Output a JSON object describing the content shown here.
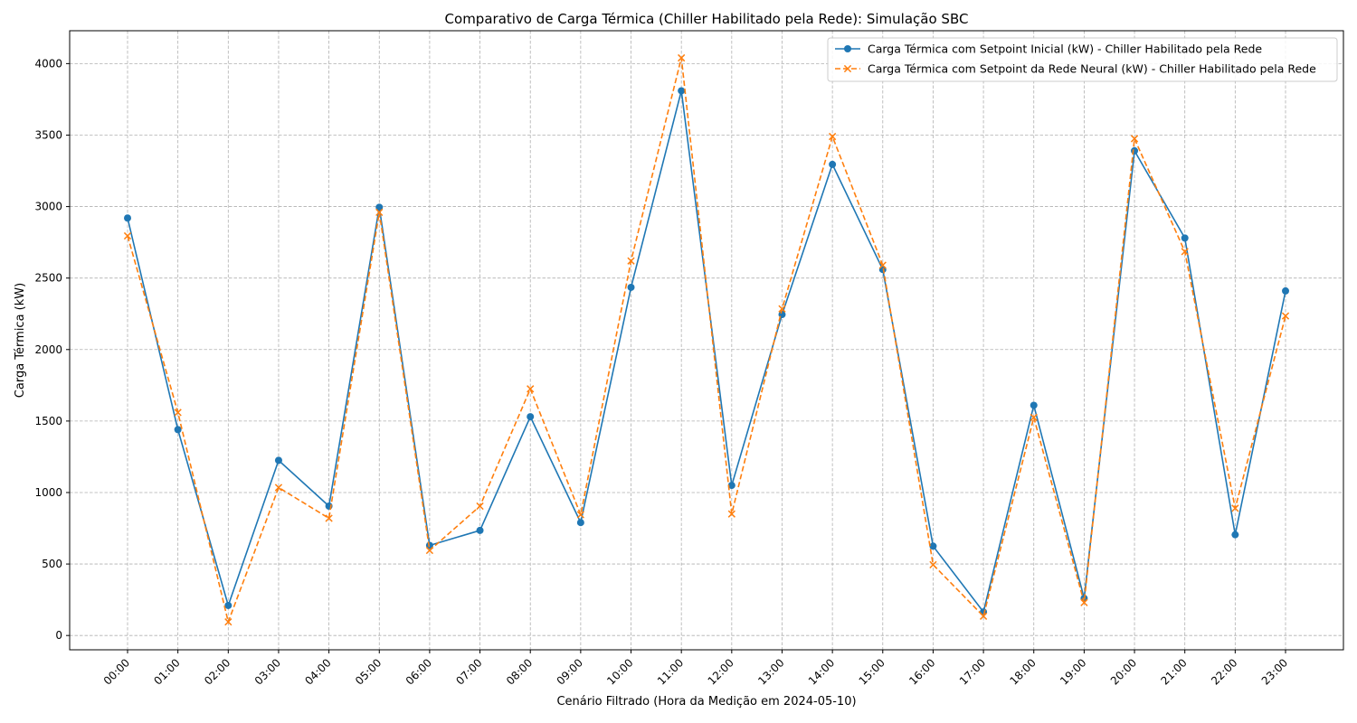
{
  "chart_data": {
    "type": "line",
    "title": "Comparativo de Carga Térmica (Chiller Habilitado pela Rede): Simulação SBC",
    "xlabel": "Cenário Filtrado (Hora da Medição em 2024-05-10)",
    "ylabel": "Carga Térmica (kW)",
    "categories": [
      "00:00",
      "01:00",
      "02:00",
      "03:00",
      "04:00",
      "05:00",
      "06:00",
      "07:00",
      "08:00",
      "09:00",
      "10:00",
      "11:00",
      "12:00",
      "13:00",
      "14:00",
      "15:00",
      "16:00",
      "17:00",
      "18:00",
      "19:00",
      "20:00",
      "21:00",
      "22:00",
      "23:00"
    ],
    "ylim": [
      -100,
      4230
    ],
    "yticks": [
      0,
      500,
      1000,
      1500,
      2000,
      2500,
      3000,
      3500,
      4000
    ],
    "grid": true,
    "legend_position": "top-right",
    "series": [
      {
        "name": "Carga Térmica com Setpoint Inicial (kW) - Chiller Habilitado pela Rede",
        "color": "#1f77b4",
        "marker": "circle",
        "linestyle": "solid",
        "values": [
          2920,
          1440,
          210,
          1225,
          905,
          2995,
          630,
          735,
          1530,
          790,
          2435,
          3810,
          1050,
          2245,
          3295,
          2560,
          625,
          165,
          1610,
          260,
          3390,
          2780,
          705,
          2410
        ]
      },
      {
        "name": "Carga Térmica com Setpoint da Rede Neural (kW) - Chiller Habilitado pela Rede",
        "color": "#ff7f0e",
        "marker": "x",
        "linestyle": "dashed",
        "values": [
          2795,
          1560,
          95,
          1035,
          820,
          2960,
          595,
          905,
          1725,
          845,
          2620,
          4040,
          850,
          2285,
          3490,
          2590,
          495,
          135,
          1525,
          230,
          3475,
          2685,
          890,
          2235
        ]
      }
    ]
  }
}
